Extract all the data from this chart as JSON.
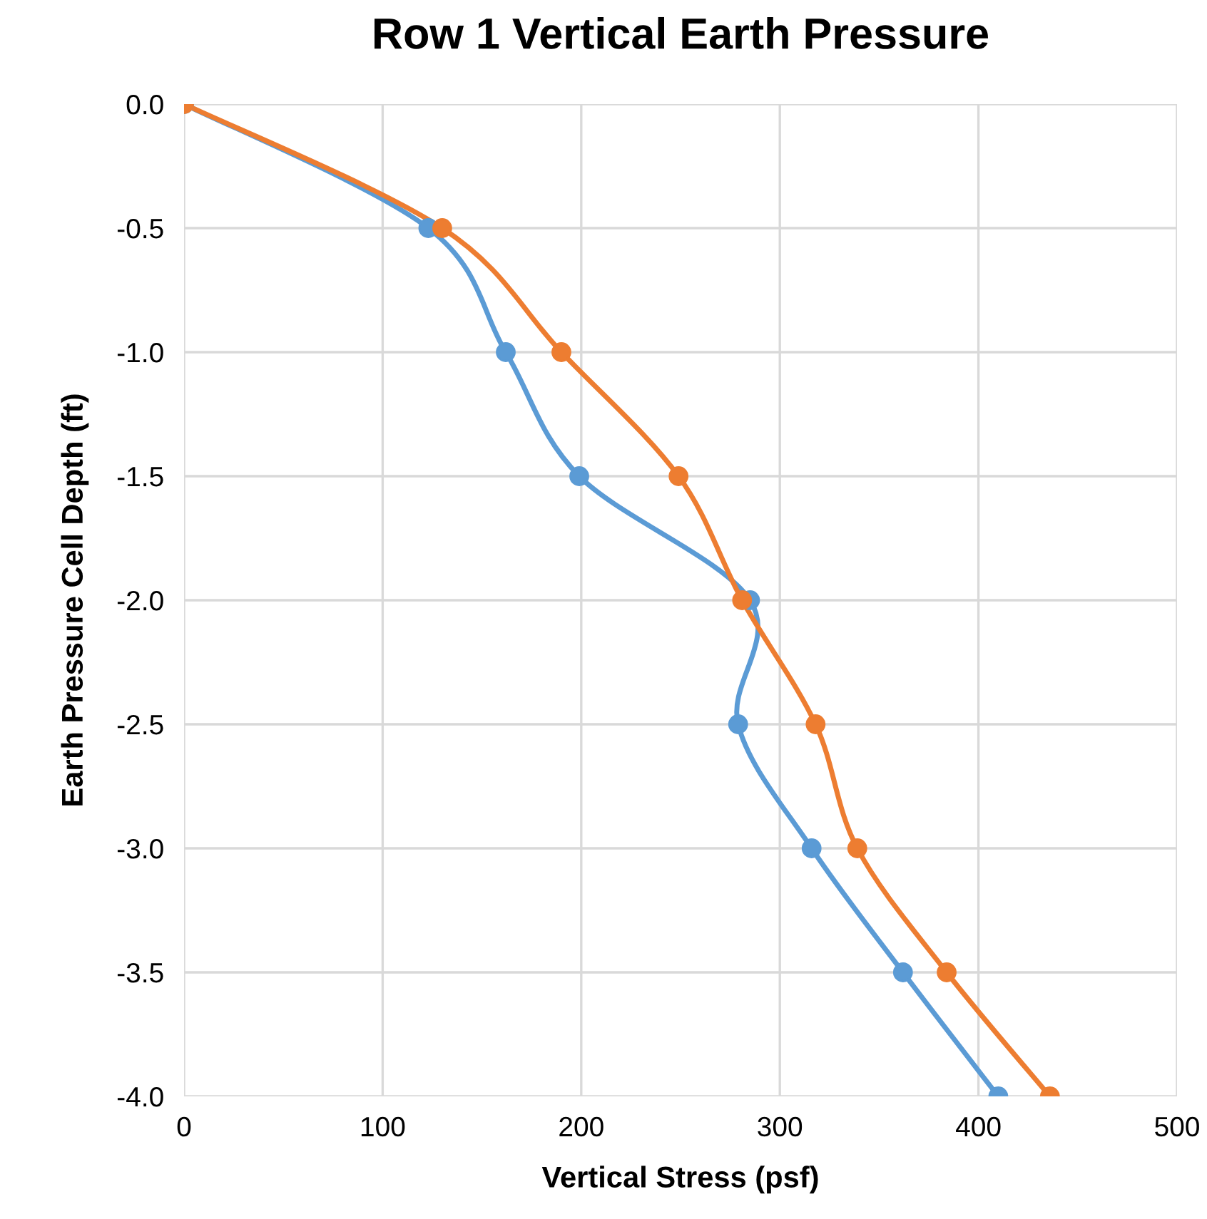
{
  "chart_data": {
    "type": "line",
    "title": "Row 1 Vertical Earth Pressure",
    "xlabel": "Vertical Stress (psf)",
    "ylabel": "Earth Pressure Cell Depth (ft)",
    "series": [
      {
        "color": "#5b9bd5",
        "x": [
          0,
          123,
          162,
          199,
          285,
          279,
          316,
          362,
          410
        ],
        "values": [
          0,
          -0.5,
          -1.0,
          -1.5,
          -2.0,
          -2.5,
          -3.0,
          -3.5,
          -4.0
        ]
      },
      {
        "color": "#ed7d31",
        "x": [
          0,
          130,
          190,
          249,
          281,
          318,
          339,
          384,
          436
        ],
        "values": [
          0,
          -0.5,
          -1.0,
          -1.5,
          -2.0,
          -2.5,
          -3.0,
          -3.5,
          -4.0
        ]
      }
    ],
    "xlim": [
      0,
      500
    ],
    "xticks": [
      0,
      100,
      200,
      300,
      400,
      500
    ],
    "ylim": [
      -4.0,
      0.0
    ],
    "yticks": [
      {
        "value": 0,
        "label": "0.0"
      },
      {
        "value": -0.5,
        "label": "-0.5"
      },
      {
        "value": -1,
        "label": "-1.0"
      },
      {
        "value": -1.5,
        "label": "-1.5"
      },
      {
        "value": -2,
        "label": "-2.0"
      },
      {
        "value": -2.5,
        "label": "-2.5"
      },
      {
        "value": -3,
        "label": "-3.0"
      },
      {
        "value": -3.5,
        "label": "-3.5"
      },
      {
        "value": -4,
        "label": "-4.0"
      }
    ],
    "grid": true,
    "marker": "circle",
    "line_style": "solid",
    "legend": false
  }
}
